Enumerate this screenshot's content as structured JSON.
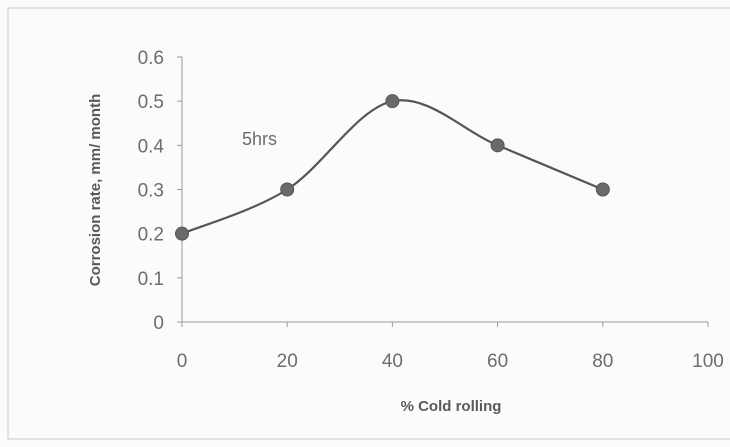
{
  "chart_data": {
    "type": "line",
    "x": [
      0,
      20,
      40,
      60,
      80
    ],
    "series": [
      {
        "values": [
          0.2,
          0.3,
          0.5,
          0.4,
          0.3
        ]
      }
    ],
    "xlabel": "% Cold rolling",
    "ylabel": "Corrosion rate, mm/ month",
    "xlim": [
      0,
      100
    ],
    "ylim": [
      0,
      0.6
    ],
    "xticks": [
      "0",
      "20",
      "40",
      "60",
      "80",
      "100"
    ],
    "yticks": [
      "0",
      "0.1",
      "0.2",
      "0.3",
      "0.4",
      "0.5",
      "0.6"
    ],
    "annotation": "5hrs",
    "smooth": true,
    "grid": false,
    "colors": {
      "line": "#555555",
      "marker": "#6a6a6a",
      "axis": "#9a9a9a",
      "frame": "#c8c8c8"
    }
  }
}
